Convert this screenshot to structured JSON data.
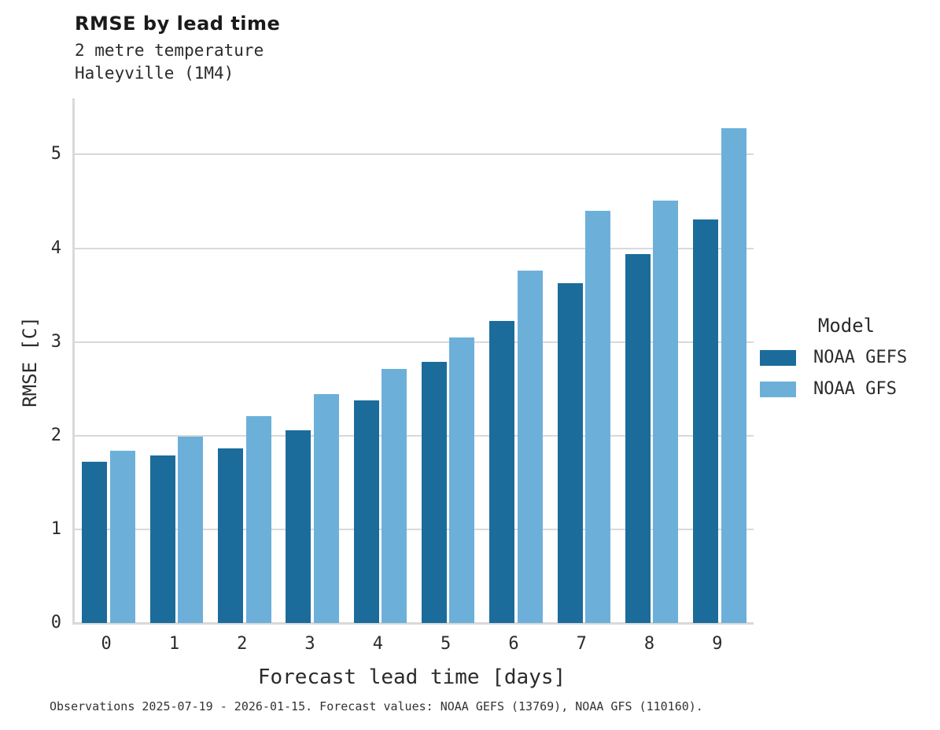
{
  "header": {
    "title": "RMSE by lead time",
    "subtitle_line1": "2 metre temperature",
    "subtitle_line2": "Haleyville (1M4)"
  },
  "chart_data": {
    "type": "bar",
    "title": "RMSE by lead time",
    "subtitle": [
      "2 metre temperature",
      "Haleyville (1M4)"
    ],
    "categories": [
      "0",
      "1",
      "2",
      "3",
      "4",
      "5",
      "6",
      "7",
      "8",
      "9"
    ],
    "series": [
      {
        "name": "NOAA GEFS",
        "color": "#1c6c9b",
        "values": [
          1.72,
          1.79,
          1.86,
          2.06,
          2.38,
          2.79,
          3.22,
          3.63,
          3.94,
          4.31
        ]
      },
      {
        "name": "NOAA GFS",
        "color": "#6cb0d9",
        "values": [
          1.84,
          1.99,
          2.21,
          2.44,
          2.71,
          3.05,
          3.76,
          4.4,
          4.51,
          5.28
        ]
      }
    ],
    "xlabel": "Forecast lead time [days]",
    "ylabel": "RMSE [C]",
    "ylim": [
      0,
      5.6
    ],
    "yticks": [
      0,
      1,
      2,
      3,
      4,
      5
    ],
    "grid": "horizontal",
    "legend_title": "Model",
    "legend_position": "right"
  },
  "colors": {
    "gefs_bar": "#1c6c9b",
    "gfs_bar": "#6cb0d9",
    "gridline": "#d9d9d9",
    "title_text": "#1a1a1a",
    "body_text": "#2b2b2b"
  },
  "footer": {
    "note": "Observations 2025-07-19 - 2026-01-15. Forecast values: NOAA GEFS (13769), NOAA GFS (110160)."
  }
}
